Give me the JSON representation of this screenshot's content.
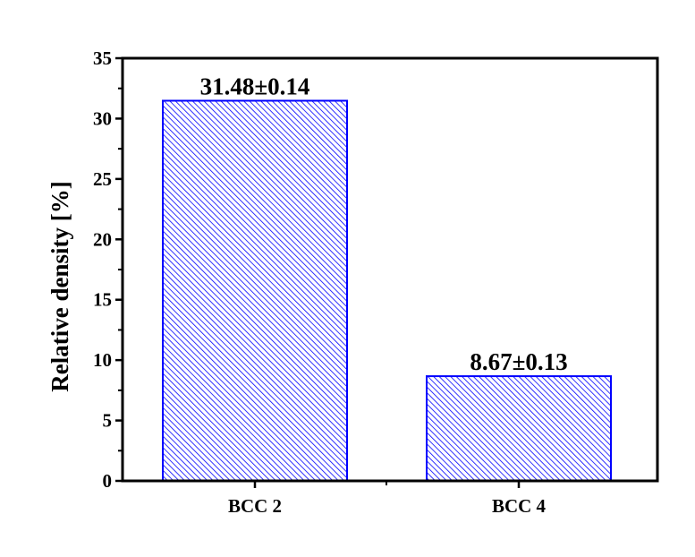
{
  "chart_data": {
    "type": "bar",
    "categories": [
      "BCC 2",
      "BCC 4"
    ],
    "values": [
      31.48,
      8.67
    ],
    "errors": [
      0.14,
      0.13
    ],
    "data_labels": [
      "31.48±0.14",
      "8.67±0.13"
    ],
    "xlabel": "",
    "ylabel": "Relative density [%]",
    "ylim": [
      0,
      35
    ],
    "yticks": [
      "0",
      "5",
      "10",
      "15",
      "20",
      "25",
      "30",
      "35"
    ],
    "grid": false,
    "bar_color": "#0000ff",
    "bar_fill": "diagonal hatch"
  }
}
